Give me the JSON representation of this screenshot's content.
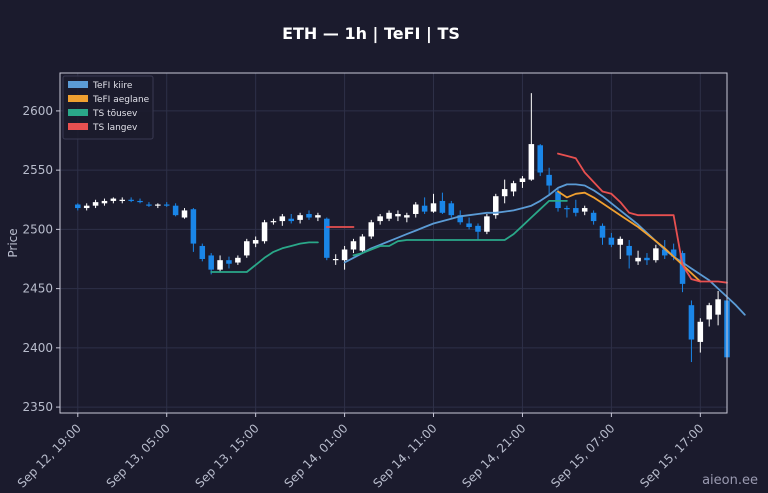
{
  "chart_data": {
    "type": "candlestick",
    "title": "ETH — 1h  |  TeFI  |  TS",
    "ylabel": "Price",
    "xlabel": "",
    "ylim": [
      2345,
      2632
    ],
    "yticks": [
      2350,
      2400,
      2450,
      2500,
      2550,
      2600
    ],
    "xlim": [
      -2,
      73
    ],
    "xticks": [
      {
        "i": 0,
        "label": "Sep 12, 19:00"
      },
      {
        "i": 10,
        "label": "Sep 13, 05:00"
      },
      {
        "i": 20,
        "label": "Sep 13, 15:00"
      },
      {
        "i": 30,
        "label": "Sep 14, 01:00"
      },
      {
        "i": 40,
        "label": "Sep 14, 11:00"
      },
      {
        "i": 50,
        "label": "Sep 14, 21:00"
      },
      {
        "i": 60,
        "label": "Sep 15, 07:00"
      },
      {
        "i": 70,
        "label": "Sep 15, 17:00"
      }
    ],
    "grid": true,
    "legend_position": "top-left",
    "candles": [
      [
        2521,
        2522,
        2516,
        2518
      ],
      [
        2518,
        2522,
        2516,
        2520
      ],
      [
        2520,
        2525,
        2518,
        2523
      ],
      [
        2522,
        2526,
        2520,
        2524
      ],
      [
        2524,
        2527,
        2522,
        2526
      ],
      [
        2524,
        2527,
        2522,
        2525
      ],
      [
        2525,
        2527,
        2523,
        2524
      ],
      [
        2524,
        2526,
        2522,
        2523
      ],
      [
        2521,
        2523,
        2519,
        2520
      ],
      [
        2520,
        2522,
        2518,
        2521
      ],
      [
        2521,
        2523,
        2519,
        2520
      ],
      [
        2520,
        2522,
        2511,
        2512
      ],
      [
        2510,
        2518,
        2509,
        2516
      ],
      [
        2517,
        2518,
        2481,
        2488
      ],
      [
        2486,
        2488,
        2473,
        2475
      ],
      [
        2478,
        2480,
        2462,
        2466
      ],
      [
        2466,
        2478,
        2464,
        2474
      ],
      [
        2474,
        2477,
        2467,
        2471
      ],
      [
        2472,
        2478,
        2470,
        2476
      ],
      [
        2478,
        2492,
        2476,
        2490
      ],
      [
        2488,
        2494,
        2485,
        2491
      ],
      [
        2490,
        2508,
        2488,
        2506
      ],
      [
        2506,
        2509,
        2504,
        2507
      ],
      [
        2507,
        2513,
        2503,
        2511
      ],
      [
        2509,
        2513,
        2505,
        2507
      ],
      [
        2508,
        2514,
        2505,
        2512
      ],
      [
        2513,
        2516,
        2508,
        2510
      ],
      [
        2510,
        2514,
        2507,
        2512
      ],
      [
        2509,
        2510,
        2474,
        2476
      ],
      [
        2474,
        2479,
        2470,
        2475
      ],
      [
        2474,
        2486,
        2466,
        2483
      ],
      [
        2483,
        2492,
        2480,
        2490
      ],
      [
        2482,
        2496,
        2481,
        2494
      ],
      [
        2494,
        2508,
        2492,
        2506
      ],
      [
        2507,
        2513,
        2504,
        2511
      ],
      [
        2509,
        2516,
        2507,
        2514
      ],
      [
        2511,
        2516,
        2507,
        2513
      ],
      [
        2510,
        2514,
        2506,
        2512
      ],
      [
        2513,
        2523,
        2510,
        2521
      ],
      [
        2520,
        2527,
        2513,
        2515
      ],
      [
        2515,
        2530,
        2514,
        2522
      ],
      [
        2524,
        2531,
        2513,
        2514
      ],
      [
        2522,
        2524,
        2510,
        2512
      ],
      [
        2512,
        2516,
        2504,
        2506
      ],
      [
        2505,
        2510,
        2500,
        2502
      ],
      [
        2503,
        2505,
        2491,
        2498
      ],
      [
        2498,
        2513,
        2496,
        2511
      ],
      [
        2512,
        2530,
        2509,
        2528
      ],
      [
        2528,
        2542,
        2522,
        2534
      ],
      [
        2532,
        2541,
        2528,
        2539
      ],
      [
        2540,
        2545,
        2535,
        2543
      ],
      [
        2542,
        2615,
        2541,
        2572
      ],
      [
        2571,
        2572,
        2545,
        2548
      ],
      [
        2546,
        2552,
        2529,
        2537
      ],
      [
        2532,
        2534,
        2515,
        2518
      ],
      [
        2518,
        2520,
        2510,
        2517
      ],
      [
        2518,
        2525,
        2511,
        2514
      ],
      [
        2515,
        2520,
        2512,
        2518
      ],
      [
        2514,
        2516,
        2504,
        2507
      ],
      [
        2503,
        2505,
        2487,
        2493
      ],
      [
        2493,
        2497,
        2485,
        2487
      ],
      [
        2487,
        2494,
        2475,
        2492
      ],
      [
        2486,
        2491,
        2467,
        2478
      ],
      [
        2473,
        2482,
        2470,
        2476
      ],
      [
        2476,
        2480,
        2470,
        2474
      ],
      [
        2474,
        2487,
        2472,
        2484
      ],
      [
        2483,
        2491,
        2475,
        2478
      ],
      [
        2483,
        2488,
        2474,
        2477
      ],
      [
        2480,
        2482,
        2447,
        2454
      ],
      [
        2436,
        2440,
        2388,
        2407
      ],
      [
        2405,
        2425,
        2396,
        2422
      ],
      [
        2424,
        2438,
        2418,
        2436
      ],
      [
        2428,
        2448,
        2419,
        2441
      ],
      [
        2440,
        2445,
        2358,
        2392
      ]
    ],
    "series": [
      {
        "name": "TeFI kiire",
        "color": "#5b9bd5",
        "start": 30,
        "values": [
          2472,
          2476,
          2480,
          2484,
          2487,
          2490,
          2493,
          2496,
          2499,
          2502,
          2505,
          2507,
          2509,
          2511,
          2512,
          2513,
          2514,
          2514,
          2515,
          2516,
          2518,
          2520,
          2524,
          2529,
          2535,
          2538,
          2538,
          2537,
          2533,
          2528,
          2522,
          2516,
          2510,
          2504,
          2497,
          2490,
          2483,
          2477,
          2472,
          2467,
          2462,
          2457,
          2450,
          2443,
          2436,
          2428
        ]
      },
      {
        "name": "TeFI aeglane",
        "color": "#f0a030",
        "start": 54,
        "values": [
          2532,
          2527,
          2530,
          2531,
          2527,
          2522,
          2517,
          2512,
          2507,
          2502,
          2496,
          2490,
          2484,
          2477,
          2470,
          2463,
          2456
        ]
      },
      {
        "name": "TS tõusev",
        "color": "#2aa889",
        "segments": [
          {
            "start": 15,
            "values": [
              2464,
              2464,
              2464,
              2464,
              2464,
              2470,
              2476,
              2481,
              2484,
              2486,
              2488,
              2489,
              2489
            ]
          },
          {
            "start": 31,
            "values": [
              2478,
              2480,
              2483,
              2486,
              2486,
              2490,
              2491,
              2491,
              2491,
              2491,
              2491,
              2491,
              2491,
              2491,
              2491,
              2491,
              2491,
              2491,
              2496,
              2503,
              2510,
              2517,
              2524,
              2524,
              2524
            ]
          }
        ]
      },
      {
        "name": "TS langev",
        "color": "#e85050",
        "segments": [
          {
            "start": 28,
            "values": [
              2502,
              2502,
              2502,
              2502
            ]
          },
          {
            "start": 54,
            "values": [
              2564,
              2562,
              2560,
              2548,
              2540,
              2532,
              2530,
              2523,
              2514,
              2512,
              2512,
              2512,
              2512,
              2512,
              2470,
              2458,
              2456,
              2456,
              2456,
              2455
            ]
          }
        ]
      }
    ]
  },
  "watermark": "aieon.ee",
  "colors": {
    "background": "#1b1b2d",
    "candle_up": "#ffffff",
    "candle_down": "#1a86e8",
    "axis": "#c8c8d8",
    "grid": "#2e3048"
  }
}
